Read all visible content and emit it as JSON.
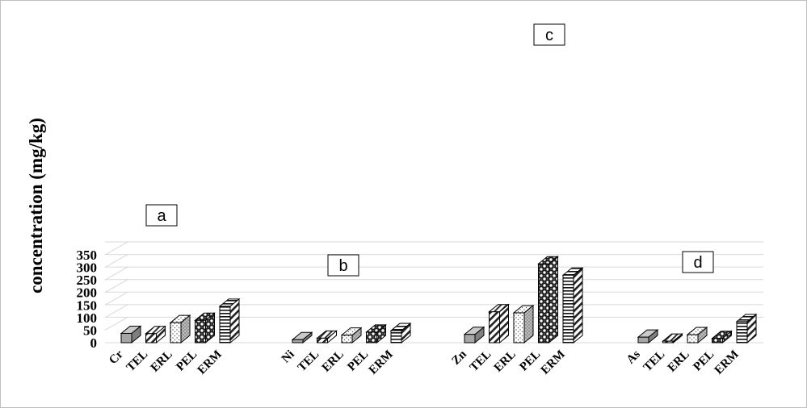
{
  "chart_data": {
    "type": "bar",
    "ylabel": "concentration (mg/kg)",
    "ylim": [
      0,
      350
    ],
    "yticks": [
      0,
      50,
      100,
      150,
      200,
      250,
      300,
      350
    ],
    "grid": true,
    "groups": [
      {
        "panel": "a",
        "categories": [
          "Cr",
          "TEL",
          "ERL",
          "PEL",
          "ERM"
        ],
        "values": [
          37,
          36,
          80,
          89,
          145
        ]
      },
      {
        "panel": "b",
        "categories": [
          "Ni",
          "TEL",
          "ERL",
          "PEL",
          "ERM"
        ],
        "values": [
          12,
          18,
          30,
          42,
          48
        ]
      },
      {
        "panel": "c",
        "categories": [
          "Zn",
          "TEL",
          "ERL",
          "PEL",
          "ERM"
        ],
        "values": [
          33,
          123,
          119,
          314,
          269
        ]
      },
      {
        "panel": "d",
        "categories": [
          "As",
          "TEL",
          "ERL",
          "PEL",
          "ERM"
        ],
        "values": [
          22,
          6,
          32,
          17,
          84
        ]
      }
    ]
  }
}
